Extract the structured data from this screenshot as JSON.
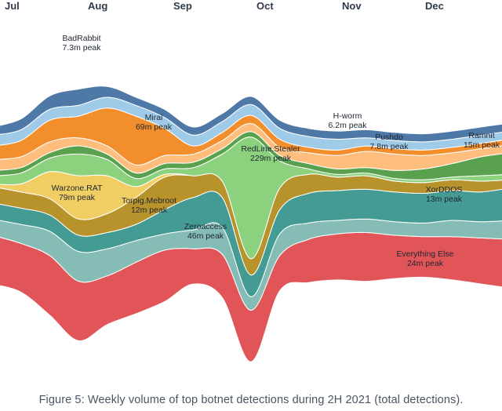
{
  "caption": "Figure 5: Weekly volume of top botnet detections during 2H 2021 (total detections).",
  "chart_data": {
    "type": "area",
    "x": [
      "Jul",
      "Jul",
      "Jul",
      "Aug",
      "Aug",
      "Aug",
      "Sep",
      "Sep",
      "Sep",
      "Oct",
      "Oct",
      "Oct",
      "Nov",
      "Nov",
      "Nov",
      "Dec",
      "Dec",
      "Dec",
      "Dec"
    ],
    "month_ticks": [
      "Jul",
      "Aug",
      "Sep",
      "Oct",
      "Nov",
      "Dec"
    ],
    "series": [
      {
        "name": "Everything Else",
        "peak": "24m peak",
        "color": "#e15559",
        "values": [
          18,
          18,
          22,
          22,
          18,
          19,
          19,
          13,
          16,
          19,
          13,
          16,
          17,
          18,
          16,
          15,
          16,
          17,
          18
        ]
      },
      {
        "name": "Zeroaccess",
        "peak": "46m peak",
        "color": "#86bcb6",
        "values": [
          6,
          7,
          9,
          11,
          10,
          8,
          6,
          7,
          10,
          5,
          8,
          6,
          5,
          5,
          5,
          5,
          6,
          6,
          7
        ]
      },
      {
        "name": "XorDDOS",
        "peak": "13m peak",
        "color": "#449b93",
        "values": [
          6,
          6,
          6,
          6,
          6,
          6,
          9,
          12,
          11,
          8,
          9,
          11,
          11,
          11,
          11,
          11,
          11,
          11,
          12
        ]
      },
      {
        "name": "Torpig.Mebroot",
        "peak": "12m peak",
        "color": "#b8932b",
        "values": [
          6,
          6,
          6,
          6,
          7,
          10,
          12,
          8,
          6,
          6,
          8,
          7,
          5,
          5,
          4,
          4,
          4,
          4,
          3
        ]
      },
      {
        "name": "Warzone.RAT",
        "peak": "79m peak",
        "color": "#f1ce63",
        "values": [
          1,
          3,
          10,
          16,
          14,
          4,
          1,
          0,
          0,
          0,
          0,
          0,
          0,
          0,
          0,
          0,
          0,
          0,
          0
        ]
      },
      {
        "name": "RedLine.Stealer",
        "peak": "229m peak",
        "color": "#8cd17d",
        "values": [
          3,
          4,
          5,
          8,
          6,
          3,
          2,
          3,
          10,
          45,
          10,
          2,
          1,
          1,
          1,
          1,
          1,
          2,
          2
        ]
      },
      {
        "name": "Ramnit",
        "peak": "15m peak",
        "color": "#59a14f",
        "values": [
          2,
          2,
          2,
          3,
          2,
          2,
          2,
          2,
          2,
          2,
          2,
          2,
          2,
          2,
          3,
          4,
          5,
          7,
          8
        ]
      },
      {
        "name": "Pushdo",
        "peak": "7.8m peak",
        "color": "#ffbe7d",
        "values": [
          4,
          4,
          4,
          3,
          3,
          3,
          3,
          3,
          3,
          3,
          3,
          4,
          5,
          6,
          6,
          5,
          4,
          3,
          3
        ]
      },
      {
        "name": "Mirai",
        "peak": "69m peak",
        "color": "#f28e2b",
        "values": [
          5,
          6,
          8,
          8,
          14,
          18,
          10,
          3,
          3,
          3,
          3,
          2,
          2,
          2,
          2,
          2,
          2,
          2,
          2
        ]
      },
      {
        "name": "H-worm",
        "peak": "6.2m peak",
        "color": "#a0cbe8",
        "values": [
          4,
          4,
          4,
          4,
          4,
          4,
          4,
          4,
          4,
          4,
          4,
          4,
          4,
          3,
          3,
          3,
          3,
          3,
          3
        ]
      },
      {
        "name": "BadRabbit",
        "peak": "7.3m peak",
        "color": "#4e79a7",
        "values": [
          3,
          4,
          5,
          6,
          4,
          3,
          3,
          3,
          3,
          3,
          3,
          3,
          3,
          3,
          3,
          3,
          3,
          3,
          3
        ]
      }
    ]
  }
}
